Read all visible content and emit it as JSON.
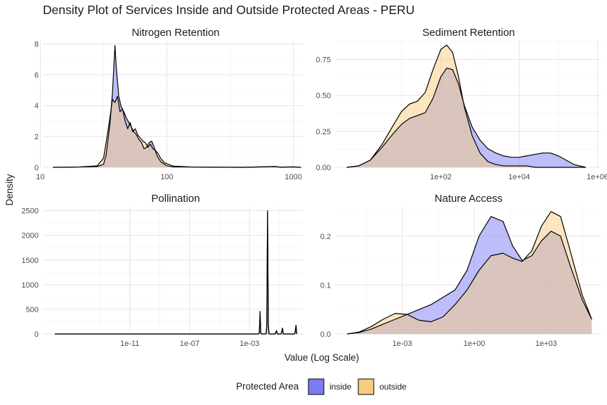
{
  "title": "Density Plot of Services Inside and Outside Protected Areas - PERU",
  "xlabel": "Value (Log Scale)",
  "ylabel": "Density",
  "legend": {
    "title": "Protected Area",
    "items": [
      {
        "name": "inside",
        "color": "#7b7bf5"
      },
      {
        "name": "outside",
        "color": "#f8cd80"
      }
    ],
    "placement": "bottom"
  },
  "colors": {
    "inside": "#7b7bf5",
    "outside": "#f8cd80",
    "overlap": "#b58f8a",
    "line": "#000000"
  },
  "chart_data": [
    {
      "type": "area",
      "title": "Nitrogen Retention",
      "xscale": "log10",
      "xlim_log10": [
        1.02,
        3.08
      ],
      "ylim": [
        0,
        8.2
      ],
      "xticks": [
        {
          "v": 1,
          "label": "10"
        },
        {
          "v": 2,
          "label": "100"
        },
        {
          "v": 3,
          "label": "1000"
        }
      ],
      "yticks": [
        {
          "v": 0,
          "label": "0"
        },
        {
          "v": 2,
          "label": "2"
        },
        {
          "v": 4,
          "label": "4"
        },
        {
          "v": 6,
          "label": "6"
        },
        {
          "v": 8,
          "label": "8"
        }
      ],
      "series": [
        {
          "name": "inside",
          "x_log10": [
            1.1,
            1.3,
            1.45,
            1.5,
            1.52,
            1.55,
            1.57,
            1.59,
            1.6,
            1.62,
            1.64,
            1.66,
            1.68,
            1.7,
            1.72,
            1.74,
            1.76,
            1.78,
            1.8,
            1.82,
            1.84,
            1.86,
            1.88,
            1.9,
            1.92,
            1.94,
            1.96,
            2.0,
            2.05,
            2.2,
            2.6,
            2.85,
            2.9,
            3.0,
            3.06
          ],
          "y": [
            0,
            0.02,
            0.05,
            0.2,
            0.8,
            2.8,
            4.8,
            7.9,
            6.5,
            4.6,
            3.9,
            3.6,
            3.2,
            2.9,
            2.6,
            2.3,
            2.1,
            1.8,
            1.6,
            1.2,
            1.3,
            1.6,
            1.7,
            1.3,
            0.8,
            0.5,
            0.3,
            0.1,
            0.03,
            0.02,
            0.0,
            0.05,
            0.01,
            0.03,
            0.0
          ]
        },
        {
          "name": "outside",
          "x_log10": [
            1.1,
            1.3,
            1.45,
            1.5,
            1.52,
            1.55,
            1.57,
            1.59,
            1.61,
            1.63,
            1.65,
            1.67,
            1.69,
            1.71,
            1.73,
            1.75,
            1.77,
            1.79,
            1.81,
            1.83,
            1.85,
            1.87,
            1.89,
            1.91,
            1.93,
            1.95,
            1.98,
            2.05,
            2.2,
            2.6,
            2.85,
            2.9,
            3.0,
            3.06
          ],
          "y": [
            0,
            0.02,
            0.1,
            0.6,
            1.6,
            3.2,
            4.4,
            4.2,
            4.6,
            3.6,
            3.8,
            3.0,
            2.5,
            2.9,
            2.3,
            2.5,
            2.1,
            1.9,
            1.7,
            1.6,
            1.3,
            1.5,
            1.2,
            1.1,
            0.9,
            0.6,
            0.3,
            0.08,
            0.02,
            0.0,
            0.05,
            0.01,
            0.03,
            0.0
          ]
        }
      ]
    },
    {
      "type": "area",
      "title": "Sediment Retention",
      "xscale": "log10",
      "xlim_log10": [
        -0.7,
        6.1
      ],
      "ylim": [
        0,
        0.88
      ],
      "xticks": [
        {
          "v": 2,
          "label": "1e+02"
        },
        {
          "v": 4,
          "label": "1e+04"
        },
        {
          "v": 6,
          "label": "1e+06"
        }
      ],
      "yticks": [
        {
          "v": 0,
          "label": "0.00"
        },
        {
          "v": 0.25,
          "label": "0.25"
        },
        {
          "v": 0.5,
          "label": "0.50"
        },
        {
          "v": 0.75,
          "label": "0.75"
        }
      ],
      "series": [
        {
          "name": "inside",
          "x_log10": [
            -0.4,
            -0.1,
            0.2,
            0.5,
            0.8,
            1.0,
            1.2,
            1.4,
            1.6,
            1.8,
            2.0,
            2.15,
            2.3,
            2.45,
            2.6,
            2.8,
            3.0,
            3.2,
            3.4,
            3.6,
            3.8,
            4.0,
            4.2,
            4.4,
            4.6,
            4.8,
            5.0,
            5.2,
            5.4,
            5.7
          ],
          "y": [
            0.0,
            0.01,
            0.05,
            0.14,
            0.24,
            0.3,
            0.34,
            0.36,
            0.38,
            0.48,
            0.63,
            0.69,
            0.68,
            0.58,
            0.43,
            0.28,
            0.19,
            0.13,
            0.1,
            0.08,
            0.07,
            0.07,
            0.08,
            0.09,
            0.1,
            0.1,
            0.08,
            0.05,
            0.02,
            0.0
          ]
        },
        {
          "name": "outside",
          "x_log10": [
            -0.4,
            -0.1,
            0.2,
            0.5,
            0.8,
            1.0,
            1.2,
            1.4,
            1.6,
            1.8,
            2.0,
            2.15,
            2.3,
            2.45,
            2.6,
            2.8,
            3.0,
            3.2,
            3.4,
            3.6,
            3.8,
            4.0,
            4.2,
            4.4,
            4.6,
            4.8,
            5.0,
            5.2,
            5.4,
            5.7
          ],
          "y": [
            0.0,
            0.01,
            0.05,
            0.16,
            0.3,
            0.39,
            0.44,
            0.46,
            0.52,
            0.68,
            0.82,
            0.85,
            0.8,
            0.63,
            0.42,
            0.22,
            0.1,
            0.04,
            0.02,
            0.01,
            0.01,
            0.01,
            0.01,
            0.0,
            0.0,
            0.0,
            0.0,
            0.0,
            0.0,
            0.0
          ]
        }
      ]
    },
    {
      "type": "area",
      "title": "Pollination",
      "xscale": "log10",
      "xlim_log10": [
        -16.8,
        0.6
      ],
      "ylim": [
        0,
        2580
      ],
      "xticks": [
        {
          "v": -11,
          "label": "1e-11"
        },
        {
          "v": -7,
          "label": "1e-07"
        },
        {
          "v": -3,
          "label": "1e-03"
        }
      ],
      "yticks": [
        {
          "v": 0,
          "label": "0"
        },
        {
          "v": 500,
          "label": "500"
        },
        {
          "v": 1000,
          "label": "1000"
        },
        {
          "v": 1500,
          "label": "1500"
        },
        {
          "v": 2000,
          "label": "2000"
        },
        {
          "v": 2500,
          "label": "2500"
        }
      ],
      "series": [
        {
          "name": "inside",
          "x_log10": [
            -16.0,
            -2.4,
            -2.35,
            -2.3,
            -2.25,
            -2.2,
            -1.9,
            -1.85,
            -1.8,
            -1.75,
            -1.7,
            -1.3,
            -1.25,
            -1.2,
            -1.15,
            -0.9,
            -0.85,
            -0.8,
            -0.75,
            0.0,
            0.05,
            0.1,
            0.15
          ],
          "y": [
            0,
            0,
            30,
            460,
            30,
            0,
            0,
            180,
            2500,
            200,
            0,
            0,
            40,
            70,
            0,
            0,
            60,
            120,
            0,
            0,
            60,
            180,
            0
          ]
        },
        {
          "name": "outside",
          "x_log10": [
            -16.0,
            -2.4,
            -2.35,
            -2.3,
            -2.25,
            -2.2,
            -1.9,
            -1.85,
            -1.8,
            -1.75,
            -1.7,
            -1.3,
            -1.25,
            -1.2,
            -1.15,
            -0.9,
            -0.85,
            -0.8,
            -0.75,
            0.0,
            0.05,
            0.1,
            0.15
          ],
          "y": [
            0,
            0,
            20,
            380,
            20,
            0,
            0,
            150,
            2450,
            180,
            0,
            0,
            30,
            60,
            0,
            0,
            50,
            110,
            0,
            0,
            50,
            170,
            0
          ]
        }
      ]
    },
    {
      "type": "area",
      "title": "Nature Access",
      "xscale": "log10",
      "xlim_log10": [
        -5.8,
        5.3
      ],
      "ylim": [
        0,
        0.26
      ],
      "xticks": [
        {
          "v": -3,
          "label": "1e-03"
        },
        {
          "v": 0,
          "label": "1e+00"
        },
        {
          "v": 3,
          "label": "1e+03"
        }
      ],
      "yticks": [
        {
          "v": 0,
          "label": "0.0"
        },
        {
          "v": 0.1,
          "label": "0.1"
        },
        {
          "v": 0.2,
          "label": "0.2"
        }
      ],
      "series": [
        {
          "name": "inside",
          "x_log10": [
            -5.3,
            -4.8,
            -4.3,
            -3.8,
            -3.3,
            -2.8,
            -2.3,
            -1.8,
            -1.3,
            -0.8,
            -0.3,
            0.2,
            0.7,
            1.2,
            1.6,
            2.0,
            2.4,
            2.8,
            3.2,
            3.6,
            4.0,
            4.5,
            4.9
          ],
          "y": [
            0.0,
            0.003,
            0.01,
            0.02,
            0.03,
            0.04,
            0.05,
            0.06,
            0.075,
            0.09,
            0.13,
            0.2,
            0.24,
            0.23,
            0.18,
            0.15,
            0.16,
            0.19,
            0.21,
            0.2,
            0.14,
            0.07,
            0.03
          ]
        },
        {
          "name": "outside",
          "x_log10": [
            -5.3,
            -4.8,
            -4.3,
            -3.8,
            -3.3,
            -2.8,
            -2.3,
            -1.8,
            -1.3,
            -0.8,
            -0.3,
            0.2,
            0.7,
            1.2,
            1.6,
            2.0,
            2.4,
            2.8,
            3.2,
            3.6,
            4.0,
            4.5,
            4.9
          ],
          "y": [
            0.0,
            0.004,
            0.015,
            0.03,
            0.042,
            0.04,
            0.028,
            0.025,
            0.035,
            0.06,
            0.09,
            0.13,
            0.16,
            0.165,
            0.155,
            0.148,
            0.17,
            0.22,
            0.25,
            0.24,
            0.17,
            0.08,
            0.03
          ]
        }
      ]
    }
  ]
}
